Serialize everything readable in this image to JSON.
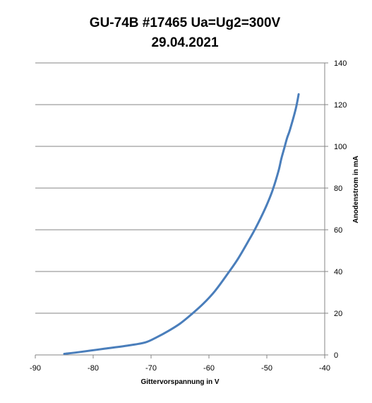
{
  "chart_data": {
    "type": "line",
    "title": "GU-74B #17465 Ua=Ug2=300V",
    "subtitle": "29.04.2021",
    "xlabel": "Gittervorspannung in V",
    "ylabel": "Anodenstrom in mA",
    "xlim": [
      -90,
      -40
    ],
    "ylim": [
      0,
      140
    ],
    "x_ticks": [
      "-90",
      "-80",
      "-70",
      "-60",
      "-50",
      "-40"
    ],
    "y_ticks": [
      "0",
      "20",
      "40",
      "60",
      "80",
      "100",
      "120",
      "140"
    ],
    "y_axis_side": "right",
    "grid": "horizontal",
    "legend": "none",
    "series": [
      {
        "color": "#4a7ebb",
        "x": [
          -85,
          -82,
          -78,
          -74,
          -71,
          -69,
          -67,
          -65,
          -63,
          -61,
          -59,
          -57,
          -55,
          -53,
          -52,
          -51,
          -50,
          -49,
          -48,
          -47.5,
          -47,
          -46.5,
          -46,
          -45,
          -44.5
        ],
        "y": [
          0.5,
          1.5,
          3,
          4.5,
          6,
          8.5,
          11.5,
          15,
          19.5,
          24.5,
          30.5,
          38,
          46,
          55.5,
          60.5,
          66,
          72,
          79,
          88,
          94,
          99,
          104,
          108,
          118,
          125
        ]
      }
    ]
  }
}
